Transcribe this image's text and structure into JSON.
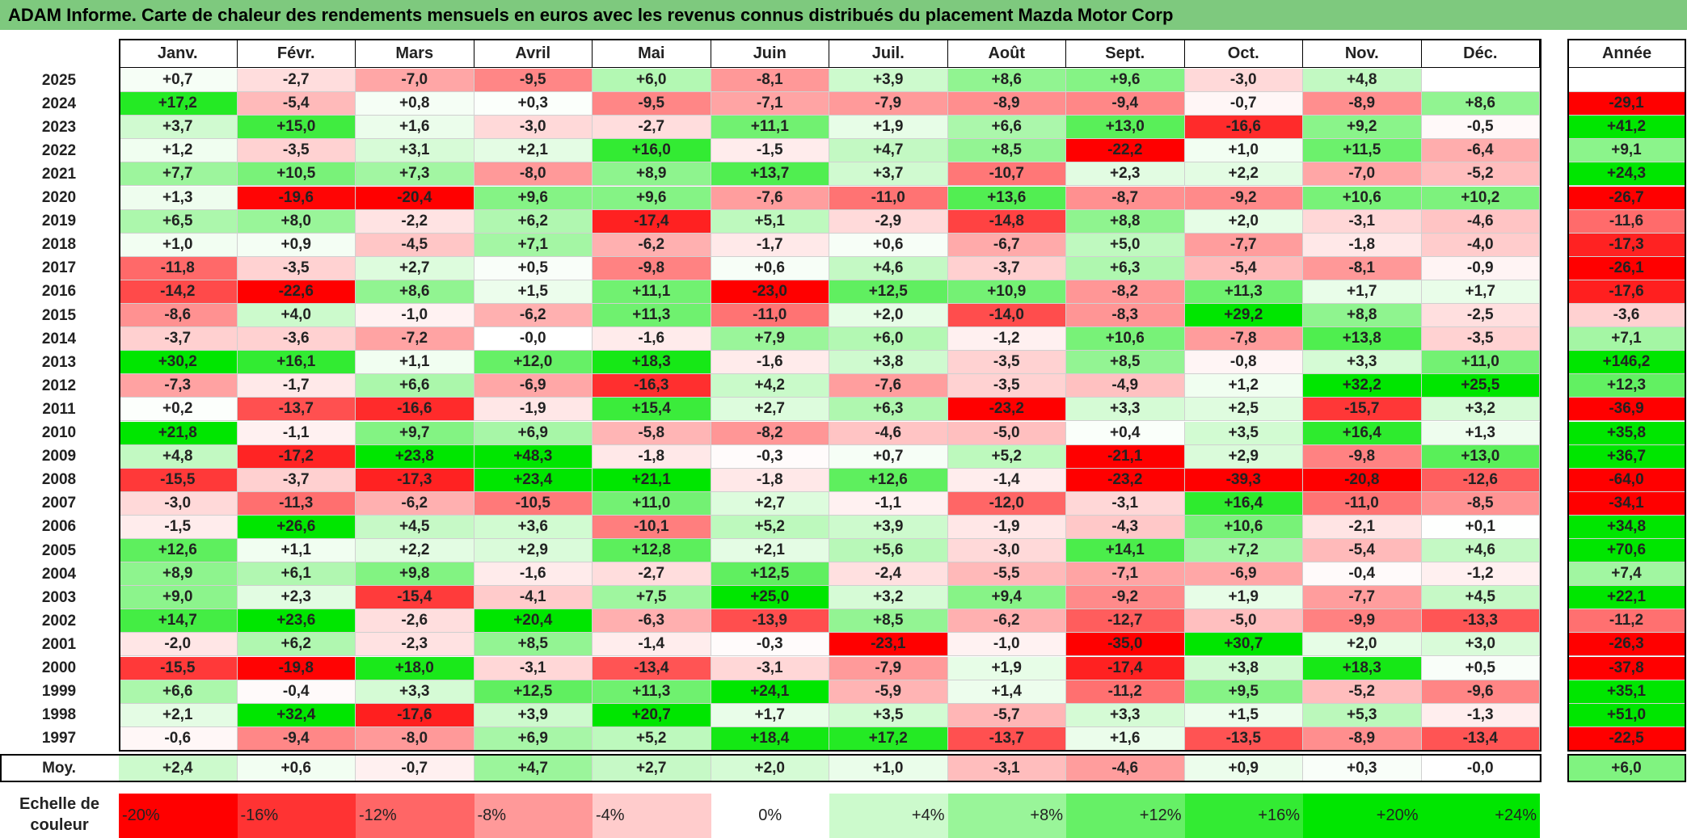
{
  "title": "ADAM Informe. Carte de chaleur des rendements mensuels en euros avec les revenus connus distribués du placement Mazda Motor Corp",
  "chart_data": {
    "type": "heatmap",
    "months": [
      "Janv.",
      "Févr.",
      "Mars",
      "Avril",
      "Mai",
      "Juin",
      "Juil.",
      "Août",
      "Sept.",
      "Oct.",
      "Nov.",
      "Déc."
    ],
    "year_header": "Année",
    "rows": [
      {
        "year": "2025",
        "values": [
          "+0,7",
          "-2,7",
          "-7,0",
          "-9,5",
          "+6,0",
          "-8,1",
          "+3,9",
          "+8,6",
          "+9,6",
          "-3,0",
          "+4,8",
          ""
        ],
        "annual": ""
      },
      {
        "year": "2024",
        "values": [
          "+17,2",
          "-5,4",
          "+0,8",
          "+0,3",
          "-9,5",
          "-7,1",
          "-7,9",
          "-8,9",
          "-9,4",
          "-0,7",
          "-8,9",
          "+8,6"
        ],
        "annual": "-29,1"
      },
      {
        "year": "2023",
        "values": [
          "+3,7",
          "+15,0",
          "+1,6",
          "-3,0",
          "-2,7",
          "+11,1",
          "+1,9",
          "+6,6",
          "+13,0",
          "-16,6",
          "+9,2",
          "-0,5"
        ],
        "annual": "+41,2"
      },
      {
        "year": "2022",
        "values": [
          "+1,2",
          "-3,5",
          "+3,1",
          "+2,1",
          "+16,0",
          "-1,5",
          "+4,7",
          "+8,5",
          "-22,2",
          "+1,0",
          "+11,5",
          "-6,4"
        ],
        "annual": "+9,1"
      },
      {
        "year": "2021",
        "values": [
          "+7,7",
          "+10,5",
          "+7,3",
          "-8,0",
          "+8,9",
          "+13,7",
          "+3,7",
          "-10,7",
          "+2,3",
          "+2,2",
          "-7,0",
          "-5,2"
        ],
        "annual": "+24,3"
      },
      {
        "year": "2020",
        "values": [
          "+1,3",
          "-19,6",
          "-20,4",
          "+9,6",
          "+9,6",
          "-7,6",
          "-11,0",
          "+13,6",
          "-8,7",
          "-9,2",
          "+10,6",
          "+10,2"
        ],
        "annual": "-26,7"
      },
      {
        "year": "2019",
        "values": [
          "+6,5",
          "+8,0",
          "-2,2",
          "+6,2",
          "-17,4",
          "+5,1",
          "-2,9",
          "-14,8",
          "+8,8",
          "+2,0",
          "-3,1",
          "-4,6"
        ],
        "annual": "-11,6"
      },
      {
        "year": "2018",
        "values": [
          "+1,0",
          "+0,9",
          "-4,5",
          "+7,1",
          "-6,2",
          "-1,7",
          "+0,6",
          "-6,7",
          "+5,0",
          "-7,7",
          "-1,8",
          "-4,0"
        ],
        "annual": "-17,3"
      },
      {
        "year": "2017",
        "values": [
          "-11,8",
          "-3,5",
          "+2,7",
          "+0,5",
          "-9,8",
          "+0,6",
          "+4,6",
          "-3,7",
          "+6,3",
          "-5,4",
          "-8,1",
          "-0,9"
        ],
        "annual": "-26,1"
      },
      {
        "year": "2016",
        "values": [
          "-14,2",
          "-22,6",
          "+8,6",
          "+1,5",
          "+11,1",
          "-23,0",
          "+12,5",
          "+10,9",
          "-8,2",
          "+11,3",
          "+1,7",
          "+1,7"
        ],
        "annual": "-17,6"
      },
      {
        "year": "2015",
        "values": [
          "-8,6",
          "+4,0",
          "-1,0",
          "-6,2",
          "+11,3",
          "-11,0",
          "+2,0",
          "-14,0",
          "-8,3",
          "+29,2",
          "+8,8",
          "-2,5"
        ],
        "annual": "-3,6"
      },
      {
        "year": "2014",
        "values": [
          "-3,7",
          "-3,6",
          "-7,2",
          "-0,0",
          "-1,6",
          "+7,9",
          "+6,0",
          "-1,2",
          "+10,6",
          "-7,8",
          "+13,8",
          "-3,5"
        ],
        "annual": "+7,1"
      },
      {
        "year": "2013",
        "values": [
          "+30,2",
          "+16,1",
          "+1,1",
          "+12,0",
          "+18,3",
          "-1,6",
          "+3,8",
          "-3,5",
          "+8,5",
          "-0,8",
          "+3,3",
          "+11,0"
        ],
        "annual": "+146,2"
      },
      {
        "year": "2012",
        "values": [
          "-7,3",
          "-1,7",
          "+6,6",
          "-6,9",
          "-16,3",
          "+4,2",
          "-7,6",
          "-3,5",
          "-4,9",
          "+1,2",
          "+32,2",
          "+25,5"
        ],
        "annual": "+12,3"
      },
      {
        "year": "2011",
        "values": [
          "+0,2",
          "-13,7",
          "-16,6",
          "-1,9",
          "+15,4",
          "+2,7",
          "+6,3",
          "-23,2",
          "+3,3",
          "+2,5",
          "-15,7",
          "+3,2"
        ],
        "annual": "-36,9"
      },
      {
        "year": "2010",
        "values": [
          "+21,8",
          "-1,1",
          "+9,7",
          "+6,9",
          "-5,8",
          "-8,2",
          "-4,6",
          "-5,0",
          "+0,4",
          "+3,5",
          "+16,4",
          "+1,3"
        ],
        "annual": "+35,8"
      },
      {
        "year": "2009",
        "values": [
          "+4,8",
          "-17,2",
          "+23,8",
          "+48,3",
          "-1,8",
          "-0,3",
          "+0,7",
          "+5,2",
          "-21,1",
          "+2,9",
          "-9,8",
          "+13,0"
        ],
        "annual": "+36,7"
      },
      {
        "year": "2008",
        "values": [
          "-15,5",
          "-3,7",
          "-17,3",
          "+23,4",
          "+21,1",
          "-1,8",
          "+12,6",
          "-1,4",
          "-23,2",
          "-39,3",
          "-20,8",
          "-12,6"
        ],
        "annual": "-64,0"
      },
      {
        "year": "2007",
        "values": [
          "-3,0",
          "-11,3",
          "-6,2",
          "-10,5",
          "+11,0",
          "+2,7",
          "-1,1",
          "-12,0",
          "-3,1",
          "+16,4",
          "-11,0",
          "-8,5"
        ],
        "annual": "-34,1"
      },
      {
        "year": "2006",
        "values": [
          "-1,5",
          "+26,6",
          "+4,5",
          "+3,6",
          "-10,1",
          "+5,2",
          "+3,9",
          "-1,9",
          "-4,3",
          "+10,6",
          "-2,1",
          "+0,1"
        ],
        "annual": "+34,8"
      },
      {
        "year": "2005",
        "values": [
          "+12,6",
          "+1,1",
          "+2,2",
          "+2,9",
          "+12,8",
          "+2,1",
          "+5,6",
          "-3,0",
          "+14,1",
          "+7,2",
          "-5,4",
          "+4,6"
        ],
        "annual": "+70,6"
      },
      {
        "year": "2004",
        "values": [
          "+8,9",
          "+6,1",
          "+9,8",
          "-1,6",
          "-2,7",
          "+12,5",
          "-2,4",
          "-5,5",
          "-7,1",
          "-6,9",
          "-0,4",
          "-1,2"
        ],
        "annual": "+7,4"
      },
      {
        "year": "2003",
        "values": [
          "+9,0",
          "+2,3",
          "-15,4",
          "-4,1",
          "+7,5",
          "+25,0",
          "+3,2",
          "+9,4",
          "-9,2",
          "+1,9",
          "-7,7",
          "+4,5"
        ],
        "annual": "+22,1"
      },
      {
        "year": "2002",
        "values": [
          "+14,7",
          "+23,6",
          "-2,6",
          "+20,4",
          "-6,3",
          "-13,9",
          "+8,5",
          "-6,2",
          "-12,7",
          "-5,0",
          "-9,9",
          "-13,3"
        ],
        "annual": "-11,2"
      },
      {
        "year": "2001",
        "values": [
          "-2,0",
          "+6,2",
          "-2,3",
          "+8,5",
          "-1,4",
          "-0,3",
          "-23,1",
          "-1,0",
          "-35,0",
          "+30,7",
          "+2,0",
          "+3,0"
        ],
        "annual": "-26,3"
      },
      {
        "year": "2000",
        "values": [
          "-15,5",
          "-19,8",
          "+18,0",
          "-3,1",
          "-13,4",
          "-3,1",
          "-7,9",
          "+1,9",
          "-17,4",
          "+3,8",
          "+18,3",
          "+0,5"
        ],
        "annual": "-37,8"
      },
      {
        "year": "1999",
        "values": [
          "+6,6",
          "-0,4",
          "+3,3",
          "+12,5",
          "+11,3",
          "+24,1",
          "-5,9",
          "+1,4",
          "-11,2",
          "+9,5",
          "-5,2",
          "-9,6"
        ],
        "annual": "+35,1"
      },
      {
        "year": "1998",
        "values": [
          "+2,1",
          "+32,4",
          "-17,6",
          "+3,9",
          "+20,7",
          "+1,7",
          "+3,5",
          "-5,7",
          "+3,3",
          "+1,5",
          "+5,3",
          "-1,3"
        ],
        "annual": "+51,0"
      },
      {
        "year": "1997",
        "values": [
          "-0,6",
          "-9,4",
          "-8,0",
          "+6,9",
          "+5,2",
          "+18,4",
          "+17,2",
          "-13,7",
          "+1,6",
          "-13,5",
          "-8,9",
          "-13,4"
        ],
        "annual": "-22,5"
      }
    ],
    "average": {
      "label": "Moy.",
      "values": [
        "+2,4",
        "+0,6",
        "-0,7",
        "+4,7",
        "+2,7",
        "+2,0",
        "+1,0",
        "-3,1",
        "-4,6",
        "+0,9",
        "+0,3",
        "-0,0"
      ],
      "annual": "+6,0"
    },
    "scale": {
      "label_line1": "Echelle de",
      "label_line2": "couleur",
      "steps": [
        "-20%",
        "-16%",
        "-12%",
        "-8%",
        "-4%",
        "0%",
        "+4%",
        "+8%",
        "+12%",
        "+16%",
        "+20%",
        "+24%"
      ]
    },
    "colors": {
      "title_bg": "#7ec97e",
      "negative_max": "#ff0000",
      "positive_max": "#00e600",
      "neutral": "#ffffff"
    }
  }
}
